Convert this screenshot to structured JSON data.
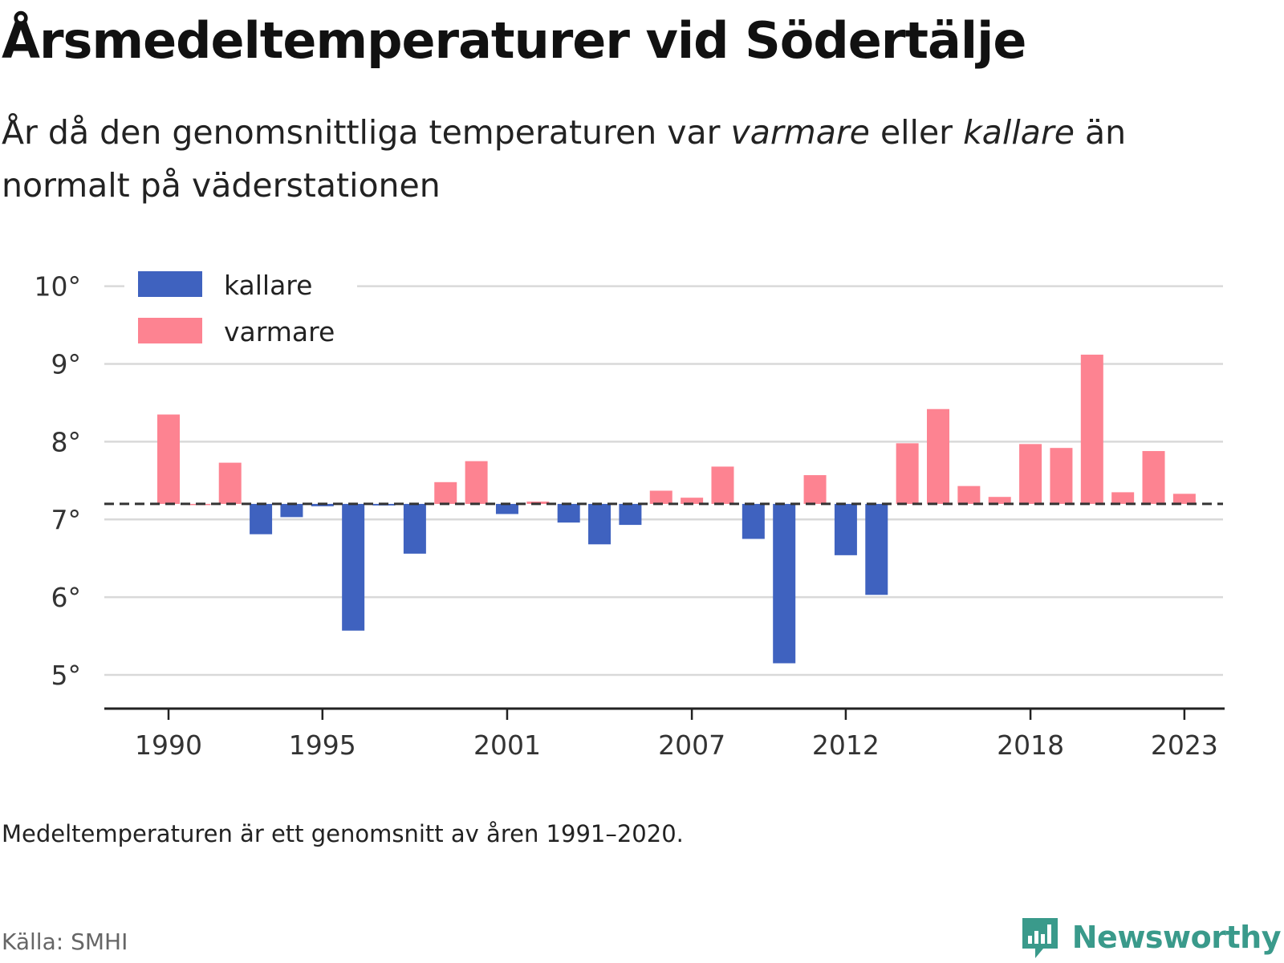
{
  "header": {
    "title": "Årsmedeltemperaturer vid Södertälje",
    "subtitle_part1": "År då den genomsnittliga temperaturen var ",
    "subtitle_warm": "varmare",
    "subtitle_part2": " eller ",
    "subtitle_cold": "kallare",
    "subtitle_part3": " än normalt på väderstationen"
  },
  "footer": {
    "note": "Medeltemperaturen är ett genomsnitt av åren 1991–2020.",
    "source": "Källa: SMHI",
    "brand": "Newsworthy"
  },
  "colors": {
    "colder": "#3f62bf",
    "warmer": "#fd8391",
    "reference_line": "#333333",
    "grid": "#d9d9d9",
    "axis": "#222222",
    "brand": "#3a9a8b"
  },
  "chart_data": {
    "type": "bar",
    "baseline": 7.2,
    "ylim": [
      4.35,
      10.1
    ],
    "yticks": [
      5,
      6,
      7,
      8,
      9,
      10
    ],
    "ytick_labels": [
      "5°",
      "6°",
      "7°",
      "8°",
      "9°",
      "10°"
    ],
    "xticks": [
      1990,
      1995,
      2001,
      2007,
      2012,
      2018,
      2023
    ],
    "xtick_labels": [
      "1990",
      "1995",
      "2001",
      "2007",
      "2012",
      "2018",
      "2023"
    ],
    "grid": true,
    "legend": {
      "position": "top-left",
      "items": [
        {
          "label": "kallare",
          "color": "#3f62bf"
        },
        {
          "label": "varmare",
          "color": "#fd8391"
        }
      ]
    },
    "years": [
      1990,
      1991,
      1992,
      1993,
      1994,
      1995,
      1996,
      1997,
      1998,
      1999,
      2000,
      2001,
      2002,
      2003,
      2004,
      2005,
      2006,
      2007,
      2008,
      2009,
      2010,
      2011,
      2012,
      2013,
      2014,
      2015,
      2016,
      2017,
      2018,
      2019,
      2020,
      2021,
      2022,
      2023
    ],
    "values": [
      8.35,
      7.2,
      7.73,
      6.81,
      7.03,
      7.17,
      5.57,
      7.18,
      6.56,
      7.48,
      7.75,
      7.07,
      7.23,
      6.96,
      6.68,
      6.93,
      7.37,
      7.28,
      7.68,
      6.75,
      5.15,
      7.57,
      6.54,
      6.03,
      7.98,
      8.42,
      7.43,
      7.29,
      7.97,
      7.92,
      9.12,
      7.35,
      7.88,
      7.33
    ]
  }
}
